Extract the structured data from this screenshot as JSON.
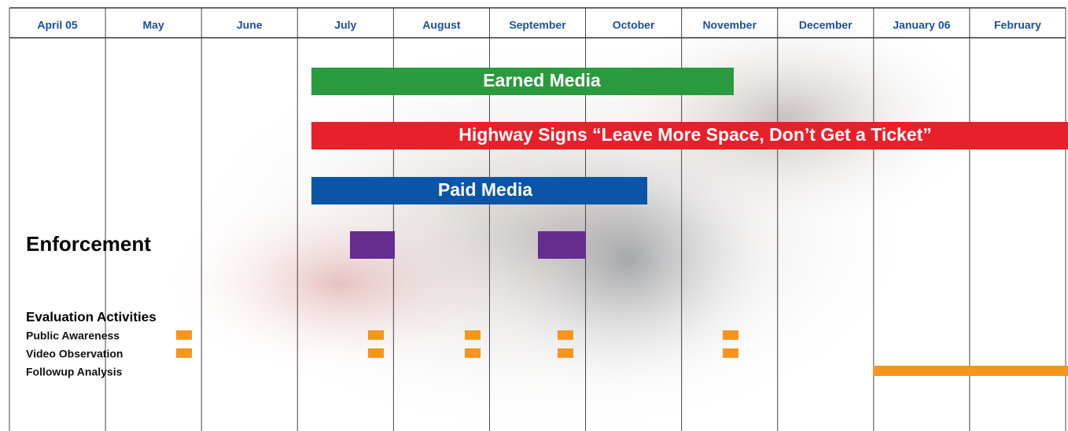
{
  "header": {
    "months": [
      "April 05",
      "May",
      "June",
      "July",
      "August",
      "September",
      "October",
      "November",
      "December",
      "January 06",
      "February"
    ]
  },
  "bars": [
    {
      "label": "Earned Media"
    },
    {
      "label": "Highway Signs “Leave More Space, Don’t Get a Ticket”"
    },
    {
      "label": "Paid Media"
    }
  ],
  "enforcement": {
    "label": "Enforcement"
  },
  "evaluation": {
    "title": "Evaluation Activities",
    "rows": [
      "Public Awareness",
      "Video Observation",
      "Followup Analysis"
    ]
  }
}
